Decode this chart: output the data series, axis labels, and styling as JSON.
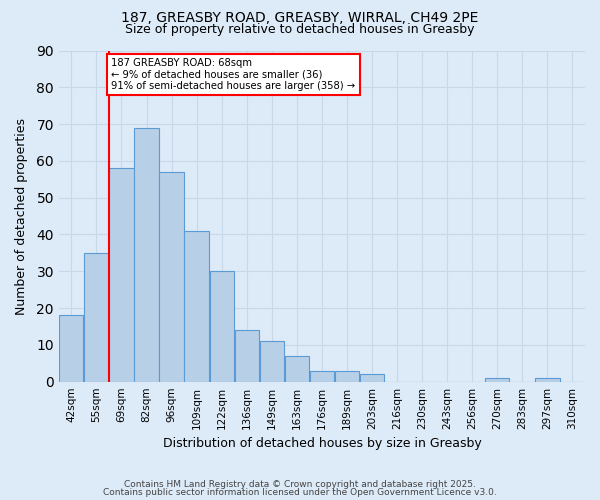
{
  "title_line1": "187, GREASBY ROAD, GREASBY, WIRRAL, CH49 2PE",
  "title_line2": "Size of property relative to detached houses in Greasby",
  "xlabel": "Distribution of detached houses by size in Greasby",
  "ylabel": "Number of detached properties",
  "footer_line1": "Contains HM Land Registry data © Crown copyright and database right 2025.",
  "footer_line2": "Contains public sector information licensed under the Open Government Licence v3.0.",
  "bins": [
    "42sqm",
    "55sqm",
    "69sqm",
    "82sqm",
    "96sqm",
    "109sqm",
    "122sqm",
    "136sqm",
    "149sqm",
    "163sqm",
    "176sqm",
    "189sqm",
    "203sqm",
    "216sqm",
    "230sqm",
    "243sqm",
    "256sqm",
    "270sqm",
    "283sqm",
    "297sqm",
    "310sqm"
  ],
  "values": [
    18,
    35,
    58,
    69,
    57,
    41,
    30,
    14,
    11,
    7,
    3,
    3,
    2,
    0,
    0,
    0,
    0,
    1,
    0,
    1,
    0
  ],
  "bar_color": "#b8cfe8",
  "bar_edge_color": "#5b9bd5",
  "grid_color": "#c8d8e8",
  "vline_x_index": 2,
  "vline_color": "red",
  "annotation_text": "187 GREASBY ROAD: 68sqm\n← 9% of detached houses are smaller (36)\n91% of semi-detached houses are larger (358) →",
  "annotation_box_color": "white",
  "annotation_box_edge_color": "red",
  "ylim": [
    0,
    90
  ],
  "yticks": [
    0,
    10,
    20,
    30,
    40,
    50,
    60,
    70,
    80,
    90
  ],
  "background_color": "#ddeaf7"
}
